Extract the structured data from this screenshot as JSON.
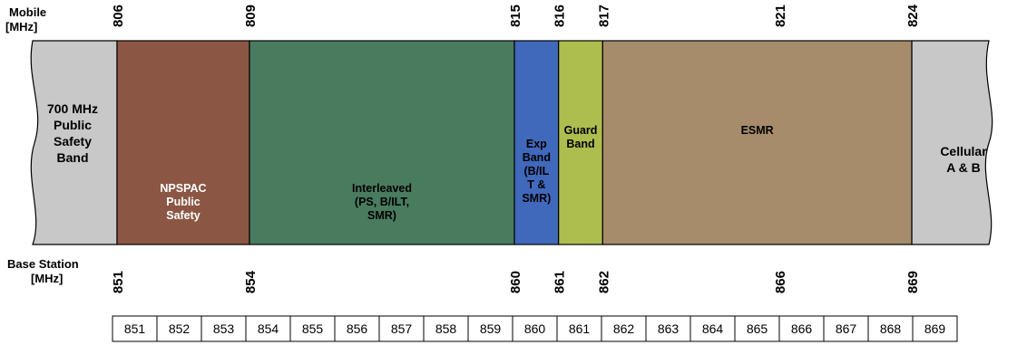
{
  "axes": {
    "mobile_title": [
      "Mobile",
      "[MHz]"
    ],
    "base_title": [
      "Base Station",
      "[MHz]"
    ]
  },
  "edge_bands": [
    {
      "id": "left",
      "lines": [
        "700 MHz",
        "Public",
        "Safety",
        "Band"
      ],
      "color": "#c8c8c8"
    },
    {
      "id": "right",
      "lines": [
        "Cellular",
        "A & B"
      ],
      "color": "#c8c8c8"
    }
  ],
  "bands": [
    {
      "id": "npspac",
      "lines": [
        "NPSPAC",
        "Public",
        "Safety"
      ],
      "mobile_start": 806,
      "mobile_end": 809,
      "base_start": 851,
      "base_end": 854,
      "color": "#8b5744",
      "text_color": "#ffffff",
      "label_valign": "bottom"
    },
    {
      "id": "interleaved",
      "lines": [
        "Interleaved",
        "(PS, B/ILT,",
        "SMR)"
      ],
      "mobile_start": 809,
      "mobile_end": 815,
      "base_start": 854,
      "base_end": 860,
      "color": "#497b5e",
      "text_color": "#000000",
      "label_valign": "bottom"
    },
    {
      "id": "exp-band",
      "lines": [
        "Exp",
        "Band",
        "(B/IL",
        "T &",
        "SMR)"
      ],
      "mobile_start": 815,
      "mobile_end": 816,
      "base_start": 860,
      "base_end": 861,
      "color": "#4068bb",
      "text_color": "#000000",
      "label_valign": "middle"
    },
    {
      "id": "guard-band",
      "lines": [
        "Guard",
        "Band"
      ],
      "mobile_start": 816,
      "mobile_end": 817,
      "base_start": 861,
      "base_end": 862,
      "color": "#adbd4e",
      "text_color": "#000000",
      "label_valign": "top"
    },
    {
      "id": "esmr",
      "lines": [
        "ESMR"
      ],
      "mobile_start": 817,
      "mobile_end": 824,
      "base_start": 862,
      "base_end": 869,
      "color": "#a68c6b",
      "text_color": "#000000",
      "label_valign": "top"
    }
  ],
  "mobile_ticks": [
    "806",
    "809",
    "815",
    "816",
    "817",
    "821",
    "824"
  ],
  "base_ticks": [
    "851",
    "854",
    "860",
    "861",
    "862",
    "866",
    "869"
  ],
  "ruler": [
    "851",
    "852",
    "853",
    "854",
    "855",
    "856",
    "857",
    "858",
    "859",
    "860",
    "861",
    "862",
    "863",
    "864",
    "865",
    "866",
    "867",
    "868",
    "869"
  ]
}
